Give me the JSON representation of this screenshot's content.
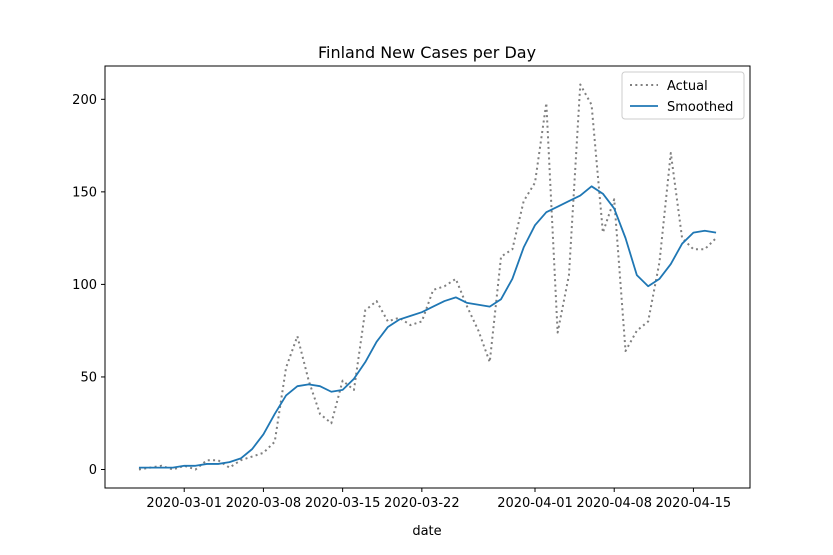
{
  "chart_data": {
    "type": "line",
    "title": "Finland New Cases per Day",
    "xlabel": "date",
    "ylabel": "",
    "x_tick_labels": [
      "2020-03-01",
      "2020-03-08",
      "2020-03-15",
      "2020-03-22",
      "2020-04-01",
      "2020-04-08",
      "2020-04-15"
    ],
    "y_tick_labels": [
      "0",
      "50",
      "100",
      "150",
      "200"
    ],
    "y_ticks": [
      0,
      50,
      100,
      150,
      200
    ],
    "xlim": [
      "2020-02-23",
      "2020-04-20"
    ],
    "ylim": [
      -10,
      218
    ],
    "grid": false,
    "legend_position": "top-right",
    "x": [
      "2020-02-26",
      "2020-02-27",
      "2020-02-28",
      "2020-02-29",
      "2020-03-01",
      "2020-03-02",
      "2020-03-03",
      "2020-03-04",
      "2020-03-05",
      "2020-03-06",
      "2020-03-07",
      "2020-03-08",
      "2020-03-09",
      "2020-03-10",
      "2020-03-11",
      "2020-03-12",
      "2020-03-13",
      "2020-03-14",
      "2020-03-15",
      "2020-03-16",
      "2020-03-17",
      "2020-03-18",
      "2020-03-19",
      "2020-03-20",
      "2020-03-21",
      "2020-03-22",
      "2020-03-23",
      "2020-03-24",
      "2020-03-25",
      "2020-03-26",
      "2020-03-27",
      "2020-03-28",
      "2020-03-29",
      "2020-03-30",
      "2020-03-31",
      "2020-04-01",
      "2020-04-02",
      "2020-04-03",
      "2020-04-04",
      "2020-04-05",
      "2020-04-06",
      "2020-04-07",
      "2020-04-08",
      "2020-04-09",
      "2020-04-10",
      "2020-04-11",
      "2020-04-12",
      "2020-04-13",
      "2020-04-14",
      "2020-04-15",
      "2020-04-16",
      "2020-04-17"
    ],
    "series": [
      {
        "name": "Actual",
        "color": "#808080",
        "style": "dotted",
        "values": [
          0,
          1,
          2,
          0,
          2,
          0,
          5,
          5,
          1,
          5,
          7,
          9,
          15,
          55,
          72,
          48,
          30,
          25,
          48,
          43,
          86,
          91,
          80,
          82,
          78,
          80,
          97,
          99,
          103,
          88,
          75,
          58,
          115,
          119,
          145,
          155,
          198,
          74,
          105,
          208,
          197,
          128,
          146,
          64,
          75,
          80,
          112,
          171,
          125,
          119,
          119,
          125
        ]
      },
      {
        "name": "Smoothed",
        "color": "#1f77b4",
        "style": "solid",
        "values": [
          1,
          1,
          1,
          1,
          2,
          2,
          3,
          3,
          4,
          6,
          11,
          19,
          30,
          40,
          45,
          46,
          45,
          42,
          43,
          49,
          58,
          69,
          77,
          81,
          83,
          85,
          88,
          91,
          93,
          90,
          89,
          88,
          92,
          103,
          120,
          132,
          139,
          142,
          145,
          148,
          153,
          149,
          141,
          125,
          105,
          99,
          103,
          111,
          122,
          128,
          129,
          128
        ]
      }
    ]
  }
}
